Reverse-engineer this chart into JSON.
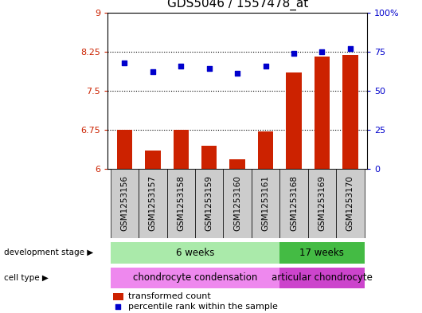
{
  "title": "GDS5046 / 1557478_at",
  "samples": [
    "GSM1253156",
    "GSM1253157",
    "GSM1253158",
    "GSM1253159",
    "GSM1253160",
    "GSM1253161",
    "GSM1253168",
    "GSM1253169",
    "GSM1253170"
  ],
  "transformed_count": [
    6.75,
    6.35,
    6.75,
    6.45,
    6.18,
    6.72,
    7.85,
    8.15,
    8.18
  ],
  "percentile_rank": [
    68,
    62,
    66,
    64,
    61,
    66,
    74,
    75,
    77
  ],
  "ylim_left": [
    6,
    9
  ],
  "ylim_right": [
    0,
    100
  ],
  "yticks_left": [
    6,
    6.75,
    7.5,
    8.25,
    9
  ],
  "yticks_right": [
    0,
    25,
    50,
    75,
    100
  ],
  "ytick_labels_left": [
    "6",
    "6.75",
    "7.5",
    "8.25",
    "9"
  ],
  "ytick_labels_right": [
    "0",
    "25",
    "50",
    "75",
    "100%"
  ],
  "bar_color": "#cc2200",
  "dot_color": "#0000cc",
  "bar_width": 0.55,
  "groups": [
    {
      "label": "6 weeks",
      "start": 0,
      "end": 5,
      "color": "#aaeaaa"
    },
    {
      "label": "17 weeks",
      "start": 6,
      "end": 8,
      "color": "#44bb44"
    }
  ],
  "cell_types": [
    {
      "label": "chondrocyte condensation",
      "start": 0,
      "end": 5,
      "color": "#ee88ee"
    },
    {
      "label": "articular chondrocyte",
      "start": 6,
      "end": 8,
      "color": "#cc44cc"
    }
  ],
  "dev_stage_label": "development stage",
  "cell_type_label": "cell type",
  "legend_bar_label": "transformed count",
  "legend_dot_label": "percentile rank within the sample",
  "plot_bg_color": "#ffffff",
  "tick_label_color_left": "#cc2200",
  "tick_label_color_right": "#0000cc",
  "label_box_color": "#cccccc"
}
